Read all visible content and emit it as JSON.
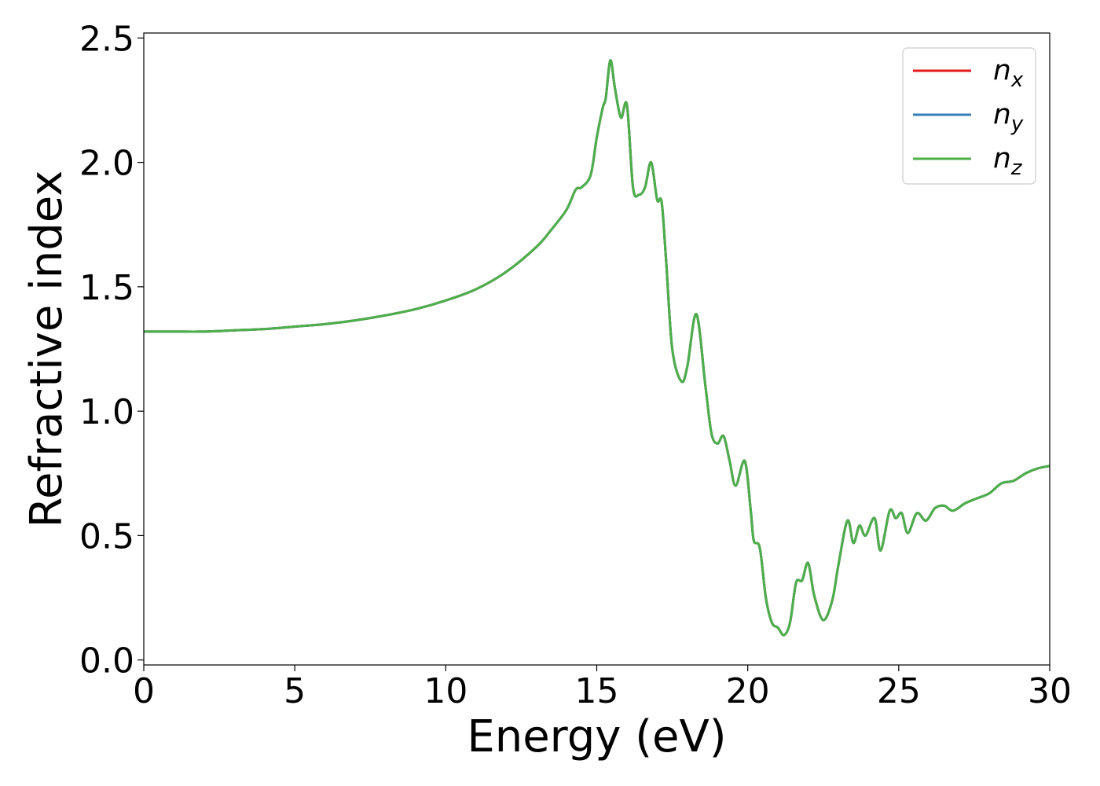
{
  "chart_data": {
    "type": "line",
    "title": "",
    "xlabel": "Energy (eV)",
    "ylabel": "Refractive index",
    "xlim": [
      0,
      30
    ],
    "ylim": [
      -0.02,
      2.52
    ],
    "xticks": [
      0,
      5,
      10,
      15,
      20,
      25,
      30
    ],
    "xtick_labels": [
      "0",
      "5",
      "10",
      "15",
      "20",
      "25",
      "30"
    ],
    "yticks": [
      0.0,
      0.5,
      1.0,
      1.5,
      2.0,
      2.5
    ],
    "ytick_labels": [
      "0.0",
      "0.5",
      "1.0",
      "1.5",
      "2.0",
      "2.5"
    ],
    "grid": false,
    "legend_position": "top-right",
    "x": [
      0,
      1,
      2,
      3,
      4,
      5,
      6,
      7,
      8,
      9,
      10,
      11,
      12,
      13,
      13.5,
      14,
      14.3,
      14.5,
      14.8,
      15.0,
      15.2,
      15.3,
      15.45,
      15.6,
      15.8,
      16.0,
      16.2,
      16.4,
      16.6,
      16.8,
      17.0,
      17.15,
      17.3,
      17.5,
      17.8,
      18.0,
      18.3,
      18.6,
      18.8,
      19.0,
      19.2,
      19.4,
      19.6,
      19.9,
      20.1,
      20.2,
      20.4,
      20.6,
      20.8,
      21.0,
      21.2,
      21.4,
      21.6,
      21.8,
      22.0,
      22.2,
      22.5,
      22.8,
      23.0,
      23.3,
      23.5,
      23.7,
      23.9,
      24.2,
      24.4,
      24.7,
      24.9,
      25.1,
      25.3,
      25.6,
      25.9,
      26.2,
      26.5,
      26.8,
      27.2,
      27.6,
      28.0,
      28.4,
      28.8,
      29.2,
      29.6,
      30.0
    ],
    "series": [
      {
        "name": "n_x",
        "label_base": "n",
        "label_sub": "x",
        "color": "#e41a1c",
        "values": [
          1.32,
          1.32,
          1.32,
          1.325,
          1.33,
          1.34,
          1.35,
          1.365,
          1.385,
          1.41,
          1.445,
          1.49,
          1.56,
          1.66,
          1.73,
          1.81,
          1.89,
          1.9,
          1.95,
          2.1,
          2.22,
          2.26,
          2.41,
          2.3,
          2.18,
          2.23,
          1.9,
          1.87,
          1.9,
          2.0,
          1.85,
          1.84,
          1.6,
          1.25,
          1.12,
          1.18,
          1.39,
          1.1,
          0.91,
          0.87,
          0.9,
          0.8,
          0.7,
          0.8,
          0.6,
          0.48,
          0.45,
          0.25,
          0.15,
          0.13,
          0.1,
          0.15,
          0.31,
          0.32,
          0.39,
          0.26,
          0.16,
          0.24,
          0.38,
          0.56,
          0.47,
          0.54,
          0.5,
          0.57,
          0.44,
          0.6,
          0.57,
          0.59,
          0.51,
          0.59,
          0.56,
          0.61,
          0.62,
          0.6,
          0.63,
          0.65,
          0.67,
          0.71,
          0.72,
          0.75,
          0.77,
          0.78
        ]
      },
      {
        "name": "n_y",
        "label_base": "n",
        "label_sub": "y",
        "color": "#377eb8",
        "values": [
          1.32,
          1.32,
          1.32,
          1.325,
          1.33,
          1.34,
          1.35,
          1.365,
          1.385,
          1.41,
          1.445,
          1.49,
          1.56,
          1.66,
          1.73,
          1.81,
          1.89,
          1.9,
          1.95,
          2.1,
          2.22,
          2.26,
          2.41,
          2.3,
          2.18,
          2.23,
          1.9,
          1.87,
          1.9,
          2.0,
          1.85,
          1.84,
          1.6,
          1.25,
          1.12,
          1.18,
          1.39,
          1.1,
          0.91,
          0.87,
          0.9,
          0.8,
          0.7,
          0.8,
          0.6,
          0.48,
          0.45,
          0.25,
          0.15,
          0.13,
          0.1,
          0.15,
          0.31,
          0.32,
          0.39,
          0.26,
          0.16,
          0.24,
          0.38,
          0.56,
          0.47,
          0.54,
          0.5,
          0.57,
          0.44,
          0.6,
          0.57,
          0.59,
          0.51,
          0.59,
          0.56,
          0.61,
          0.62,
          0.6,
          0.63,
          0.65,
          0.67,
          0.71,
          0.72,
          0.75,
          0.77,
          0.78
        ]
      },
      {
        "name": "n_z",
        "label_base": "n",
        "label_sub": "z",
        "color": "#4daf4a",
        "values": [
          1.32,
          1.32,
          1.32,
          1.325,
          1.33,
          1.34,
          1.35,
          1.365,
          1.385,
          1.41,
          1.445,
          1.49,
          1.56,
          1.66,
          1.73,
          1.81,
          1.89,
          1.9,
          1.95,
          2.1,
          2.22,
          2.26,
          2.41,
          2.3,
          2.18,
          2.23,
          1.9,
          1.87,
          1.9,
          2.0,
          1.85,
          1.84,
          1.6,
          1.25,
          1.12,
          1.18,
          1.39,
          1.1,
          0.91,
          0.87,
          0.9,
          0.8,
          0.7,
          0.8,
          0.6,
          0.48,
          0.45,
          0.25,
          0.15,
          0.13,
          0.1,
          0.15,
          0.31,
          0.32,
          0.39,
          0.26,
          0.16,
          0.24,
          0.38,
          0.56,
          0.47,
          0.54,
          0.5,
          0.57,
          0.44,
          0.6,
          0.57,
          0.59,
          0.51,
          0.59,
          0.56,
          0.61,
          0.62,
          0.6,
          0.63,
          0.65,
          0.67,
          0.71,
          0.72,
          0.75,
          0.77,
          0.78
        ]
      }
    ]
  }
}
